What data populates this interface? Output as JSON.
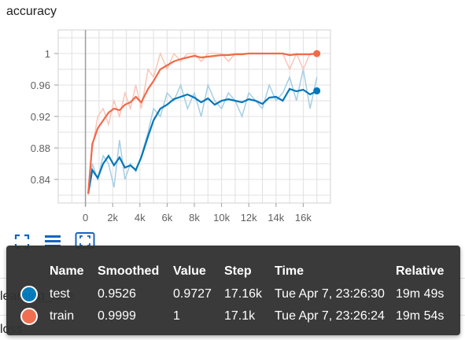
{
  "card": {
    "title": "accuracy"
  },
  "sections": [
    "learning_rate",
    "loss"
  ],
  "toolbar": {
    "icons": [
      "fullscreen-icon",
      "data-table-icon",
      "fit-domain-icon"
    ]
  },
  "chart_data": {
    "type": "line",
    "title": "accuracy",
    "xlabel": "",
    "ylabel": "",
    "xlim": [
      -2000,
      18000
    ],
    "ylim": [
      0.81,
      1.03
    ],
    "x_ticks": [
      0,
      2000,
      4000,
      6000,
      8000,
      10000,
      12000,
      14000,
      16000
    ],
    "x_tick_labels": [
      "0",
      "2k",
      "4k",
      "6k",
      "8k",
      "10k",
      "12k",
      "14k",
      "16k"
    ],
    "y_ticks": [
      0.84,
      0.88,
      0.92,
      0.96,
      1.0
    ],
    "y_tick_labels": [
      "0.84",
      "0.88",
      "0.92",
      "0.96",
      "1"
    ],
    "grid": true,
    "series": [
      {
        "name": "test",
        "color": "#0077bb",
        "raw_color": "#a6cee3",
        "x": [
          200,
          500,
          900,
          1300,
          1700,
          2100,
          2500,
          2900,
          3300,
          3700,
          4100,
          4600,
          5000,
          5500,
          6000,
          6500,
          7000,
          7500,
          8000,
          8500,
          9000,
          9500,
          10000,
          10500,
          11000,
          11500,
          12000,
          12500,
          13000,
          13500,
          14000,
          14500,
          15000,
          15500,
          16000,
          16500,
          17000
        ],
        "raw": [
          0.82,
          0.86,
          0.84,
          0.87,
          0.86,
          0.83,
          0.89,
          0.84,
          0.86,
          0.85,
          0.87,
          0.9,
          0.93,
          0.92,
          0.95,
          0.94,
          0.96,
          0.93,
          0.95,
          0.92,
          0.96,
          0.94,
          0.93,
          0.95,
          0.94,
          0.92,
          0.95,
          0.94,
          0.93,
          0.96,
          0.94,
          0.95,
          0.97,
          0.94,
          0.98,
          0.93,
          0.97
        ],
        "values": [
          0.822,
          0.852,
          0.842,
          0.86,
          0.87,
          0.858,
          0.868,
          0.855,
          0.858,
          0.852,
          0.868,
          0.895,
          0.915,
          0.93,
          0.935,
          0.942,
          0.945,
          0.948,
          0.944,
          0.938,
          0.943,
          0.935,
          0.94,
          0.942,
          0.94,
          0.938,
          0.942,
          0.94,
          0.936,
          0.944,
          0.945,
          0.94,
          0.955,
          0.952,
          0.954,
          0.948,
          0.9526
        ]
      },
      {
        "name": "train",
        "color": "#f06a4a",
        "raw_color": "#f9c6b8",
        "x": [
          200,
          500,
          900,
          1300,
          1700,
          2100,
          2500,
          2900,
          3300,
          3700,
          4100,
          4600,
          5000,
          5500,
          6000,
          6500,
          7000,
          7500,
          8000,
          8500,
          9000,
          9500,
          10000,
          10500,
          11000,
          11500,
          12000,
          12500,
          13000,
          13500,
          14000,
          14500,
          15000,
          15500,
          16000,
          16500,
          17000
        ],
        "raw": [
          0.82,
          0.88,
          0.92,
          0.93,
          0.91,
          0.94,
          0.92,
          0.95,
          0.93,
          0.96,
          0.93,
          0.98,
          0.97,
          1.0,
          0.98,
          1.0,
          0.99,
          1.0,
          1.0,
          0.99,
          1.0,
          1.0,
          1.0,
          0.99,
          1.0,
          1.0,
          1.0,
          1.0,
          1.0,
          1.0,
          1.0,
          1.0,
          0.98,
          1.0,
          0.98,
          1.0,
          1.0
        ],
        "values": [
          0.822,
          0.885,
          0.905,
          0.915,
          0.925,
          0.93,
          0.928,
          0.935,
          0.938,
          0.945,
          0.938,
          0.955,
          0.965,
          0.98,
          0.985,
          0.99,
          0.993,
          0.995,
          0.997,
          0.995,
          0.996,
          0.997,
          0.998,
          0.998,
          0.999,
          0.999,
          1.0,
          1.0,
          1.0,
          1.0,
          1.0,
          1.0,
          0.998,
          0.999,
          0.999,
          0.999,
          0.9999
        ]
      }
    ]
  },
  "tooltip": {
    "columns": [
      "Name",
      "Smoothed",
      "Value",
      "Step",
      "Time",
      "Relative"
    ],
    "rows": [
      {
        "color": "#0077bb",
        "name": "test",
        "smoothed": "0.9526",
        "value": "0.9727",
        "step": "17.16k",
        "time": "Tue Apr 7, 23:26:30",
        "relative": "19m 49s"
      },
      {
        "color": "#f06a4a",
        "name": "train",
        "smoothed": "0.9999",
        "value": "1",
        "step": "17.1k",
        "time": "Tue Apr 7, 23:26:24",
        "relative": "19m 54s"
      }
    ]
  }
}
